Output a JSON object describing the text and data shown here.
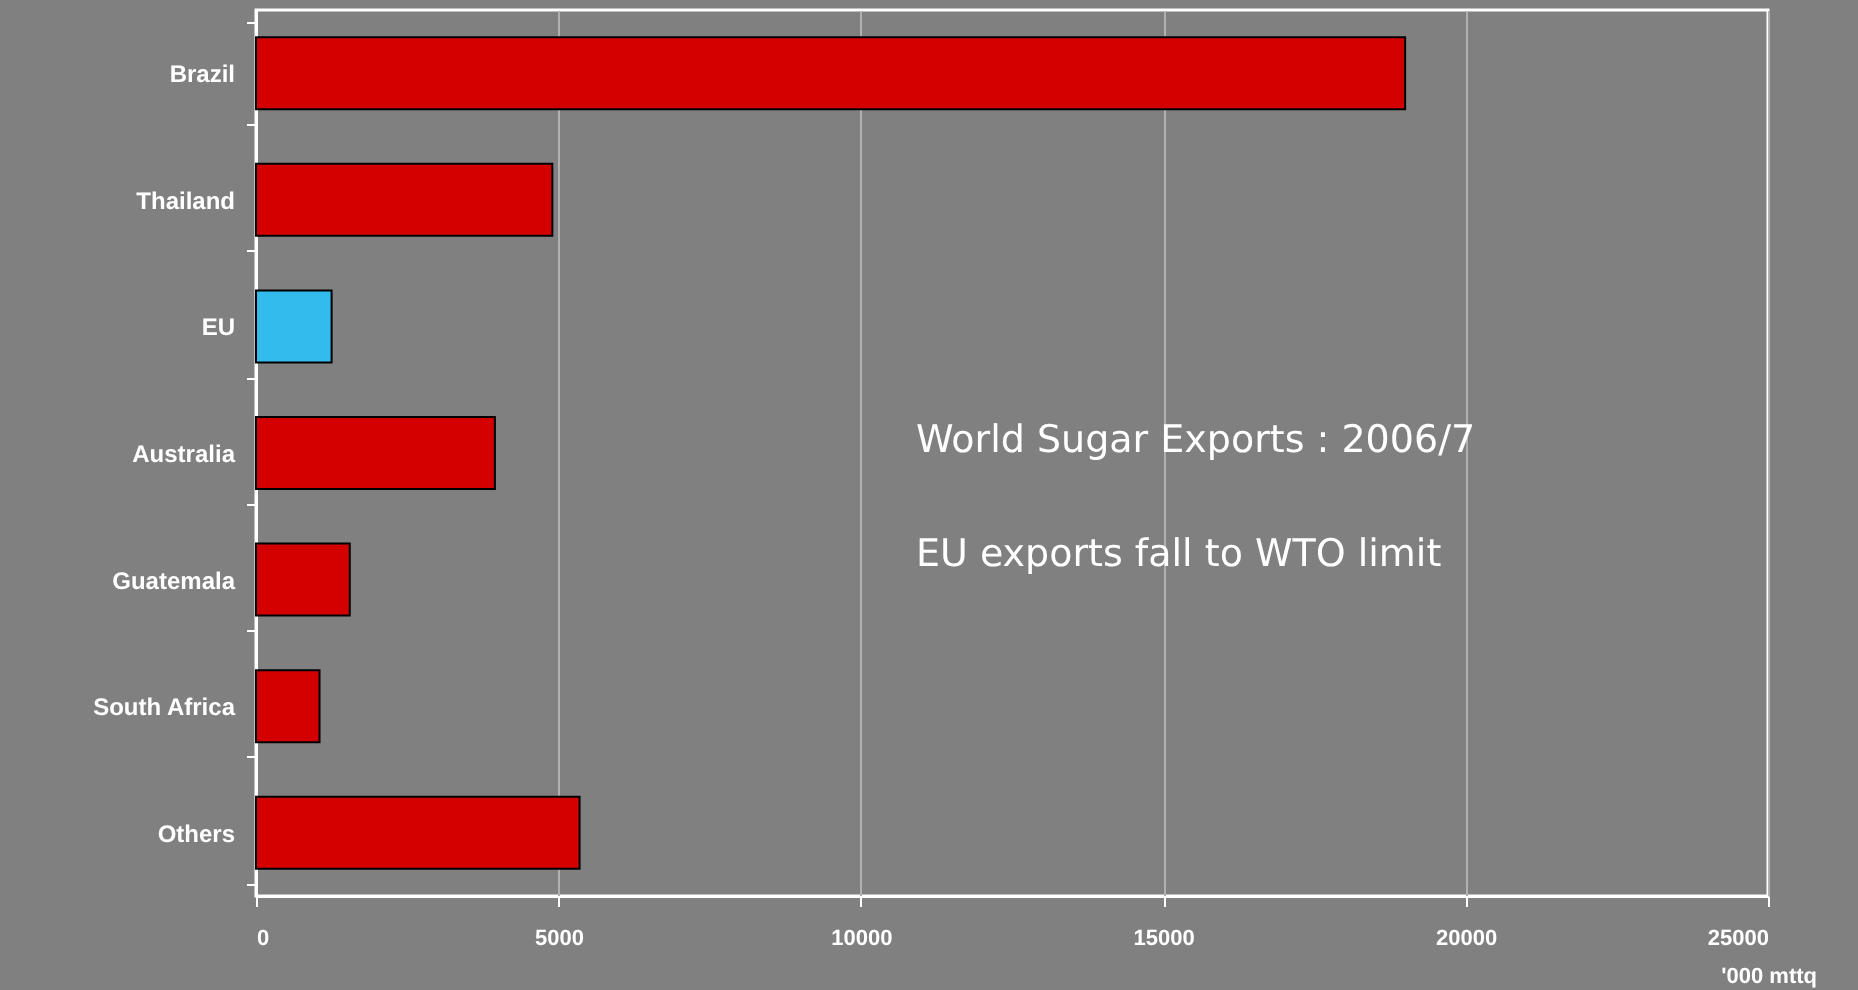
{
  "chart_data": {
    "type": "bar",
    "orientation": "horizontal",
    "categories": [
      "Brazil",
      "Thailand",
      "EU",
      "Australia",
      "Guatemala",
      "South Africa",
      "Others"
    ],
    "values": [
      19000,
      4900,
      1250,
      3950,
      1550,
      1050,
      5350
    ],
    "colors": [
      "#d40000",
      "#d40000",
      "#33bbee",
      "#d40000",
      "#d40000",
      "#d40000",
      "#d40000"
    ],
    "xlim": [
      0,
      25000
    ],
    "xticks": [
      0,
      5000,
      10000,
      15000,
      20000,
      25000
    ],
    "xlabel": "'000 mttq",
    "grid": "x",
    "annotations": [
      "World Sugar Exports :  2006/7",
      "EU exports fall to WTO limit"
    ]
  }
}
